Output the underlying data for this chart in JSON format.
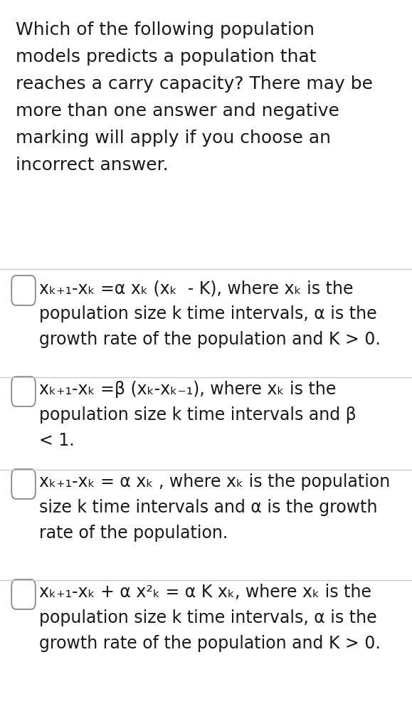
{
  "bg_color": "#ffffff",
  "text_color": "#1a1a1a",
  "question_lines": [
    "Which of the following population",
    "models predicts a population that",
    "reaches a carry capacity? There may be",
    "more than one answer and negative",
    "marking will apply if you choose an",
    "incorrect answer."
  ],
  "options": [
    {
      "line1": "xₖ₊₁-xₖ =α xₖ (xₖ  - K), where xₖ is the",
      "line2": "population size k time intervals, α is the",
      "line3": "growth rate of the population and K > 0."
    },
    {
      "line1": "xₖ₊₁-xₖ =β (xₖ-xₖ₋₁), where xₖ is the",
      "line2": "population size k time intervals and β",
      "line3": "< 1."
    },
    {
      "line1": "xₖ₊₁-xₖ = α xₖ , where xₖ is the population",
      "line2": "size k time intervals and α is the growth",
      "line3": "rate of the population."
    },
    {
      "line1": "xₖ₊₁-xₖ + α x²ₖ = α K xₖ, where xₖ is the",
      "line2": "population size k time intervals, α is the",
      "line3": "growth rate of the population and K > 0."
    }
  ],
  "figsize": [
    5.79,
    9.89
  ],
  "dpi": 100
}
